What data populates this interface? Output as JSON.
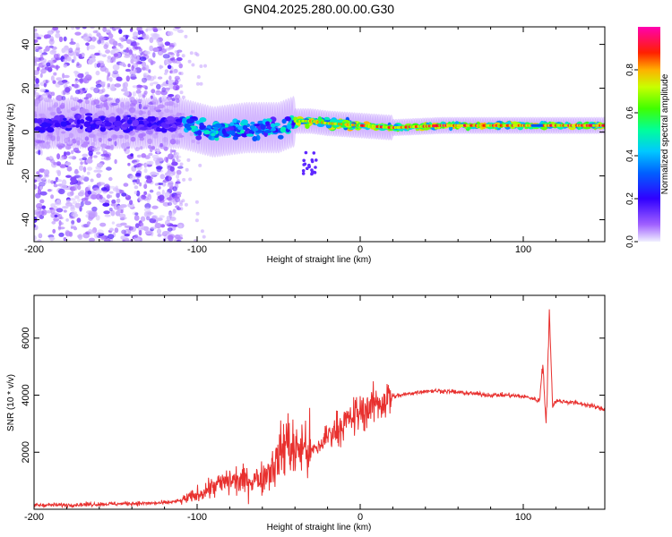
{
  "title": "GN04.2025.280.00.00.G30",
  "colors": {
    "line": "#e8302e",
    "frame": "#000000"
  },
  "chart_data": [
    {
      "type": "heatmap",
      "xlabel": "Height of straight line (km)",
      "ylabel": "Frequency (Hz)",
      "xlim": [
        -200,
        150
      ],
      "ylim": [
        -50,
        48
      ],
      "xticks": [
        -200,
        -100,
        0,
        100
      ],
      "yticks": [
        -40,
        -20,
        0,
        20,
        40
      ],
      "colorbar": {
        "label": "Normalized spectral amplitude",
        "range": [
          0,
          1
        ],
        "ticks": [
          0.0,
          0.2,
          0.4,
          0.6,
          0.8
        ],
        "tick_labels": [
          "0.0",
          "0.2",
          "0.4",
          "0.6",
          "0.8"
        ],
        "colormap": [
          "#e6e6ff",
          "#8000ff",
          "#0000ff",
          "#00c0ff",
          "#00ff80",
          "#80ff00",
          "#ffff00",
          "#ff8000",
          "#ff0000",
          "#ff00a0"
        ]
      },
      "ridge": {
        "description_points_x": [
          -200,
          -150,
          -110,
          -90,
          -70,
          -50,
          -40,
          -30,
          -20,
          0,
          20,
          50,
          80,
          100,
          110,
          150
        ],
        "center_hz": [
          4,
          4,
          4,
          0,
          2,
          2,
          5,
          5,
          4,
          3,
          2,
          3,
          3,
          3,
          3,
          3
        ]
      }
    },
    {
      "type": "line",
      "xlabel": "Height of straight line (km)",
      "ylabel": "SNR (10 * v/v)",
      "xlim": [
        -200,
        150
      ],
      "ylim": [
        0,
        7500
      ],
      "xticks": [
        -200,
        -100,
        0,
        100
      ],
      "yticks": [
        2000,
        4000,
        6000
      ],
      "series": [
        {
          "name": "SNR",
          "x": [
            -200,
            -180,
            -160,
            -140,
            -120,
            -110,
            -100,
            -90,
            -80,
            -70,
            -60,
            -50,
            -45,
            -40,
            -35,
            -30,
            -25,
            -20,
            -15,
            -10,
            -5,
            0,
            10,
            20,
            30,
            40,
            50,
            60,
            70,
            80,
            90,
            100,
            105,
            110,
            112,
            114,
            116,
            118,
            120,
            130,
            140,
            150
          ],
          "y": [
            150,
            150,
            180,
            200,
            220,
            300,
            500,
            800,
            1000,
            1000,
            1100,
            1800,
            2400,
            2000,
            2200,
            2000,
            2200,
            2600,
            2800,
            3000,
            3200,
            3400,
            3700,
            3950,
            4050,
            4150,
            4150,
            4100,
            4050,
            4000,
            4000,
            3950,
            3900,
            3800,
            5200,
            2800,
            7000,
            3600,
            3800,
            3750,
            3650,
            3500
          ]
        }
      ]
    }
  ]
}
